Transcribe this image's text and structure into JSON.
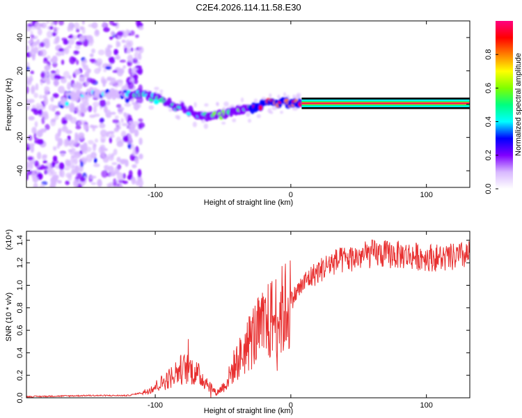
{
  "title": "C2E4.2026.114.11.58.E30",
  "chart_data": [
    {
      "type": "heatmap",
      "xlabel": "Height of straight line (km)",
      "ylabel": "Frequency (Hz)",
      "xlim": [
        -195,
        132
      ],
      "ylim": [
        -50,
        50
      ],
      "xticks": [
        -100,
        0,
        100
      ],
      "yticks": [
        -40,
        -20,
        0,
        20,
        40
      ],
      "colorbar": {
        "label": "Normalized spectral amplitude",
        "range": [
          0,
          1
        ],
        "ticks": [
          "0.0",
          "0.2",
          "0.4",
          "0.6",
          "0.8"
        ],
        "colors": [
          "#ffffff",
          "#d8b8ff",
          "#8000ff",
          "#0000ff",
          "#00ffff",
          "#00ff80",
          "#80ff00",
          "#ffff00",
          "#ff8000",
          "#ff0000",
          "#ff0080"
        ]
      },
      "ridge": {
        "name": "Frequency ridge",
        "x": [
          -165,
          -150,
          -130,
          -115,
          -105,
          -95,
          -85,
          -75,
          -65,
          -55,
          -48,
          -40,
          -30,
          -20,
          -10,
          0,
          10,
          132
        ],
        "y": [
          5,
          6,
          6,
          6,
          5,
          3,
          -1,
          -4,
          -8,
          -6,
          -6,
          -4,
          -3,
          0,
          1,
          1,
          1,
          0.5
        ]
      }
    },
    {
      "type": "line",
      "xlabel": "Height of straight line (km)",
      "ylabel": "SNR (10 * v/v)",
      "y_multiplier": "(x10⁴)",
      "xlim": [
        -195,
        132
      ],
      "ylim": [
        0,
        1.48
      ],
      "xticks": [
        -100,
        0,
        100
      ],
      "yticks": [
        "0.0",
        "0.2",
        "0.4",
        "0.6",
        "0.8",
        "1.0",
        "1.2",
        "1.4"
      ],
      "series": [
        {
          "name": "SNR",
          "color": "#e83030",
          "x": [
            -195,
            -150,
            -120,
            -108,
            -100,
            -90,
            -82,
            -75,
            -70,
            -62,
            -55,
            -48,
            -42,
            -35,
            -28,
            -20,
            -14,
            -8,
            -2,
            5,
            12,
            20,
            30,
            45,
            60,
            80,
            100,
            115,
            132
          ],
          "y": [
            0.01,
            0.02,
            0.02,
            0.05,
            0.1,
            0.17,
            0.25,
            0.26,
            0.22,
            0.14,
            0.04,
            0.12,
            0.28,
            0.4,
            0.55,
            0.62,
            0.7,
            0.75,
            0.82,
            0.95,
            1.05,
            1.12,
            1.2,
            1.24,
            1.28,
            1.27,
            1.25,
            1.24,
            1.27
          ]
        }
      ]
    }
  ]
}
